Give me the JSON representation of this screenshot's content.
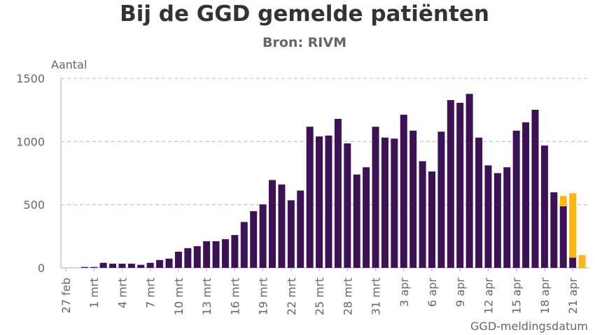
{
  "chart_data": {
    "type": "bar",
    "stacked": true,
    "title": "Bij de GGD gemelde patiënten",
    "subtitle": "Bron: RIVM",
    "ylabel": "Aantal",
    "xlabel": "GGD-meldingsdatum",
    "ylim": [
      0,
      1500
    ],
    "yticks": [
      0,
      500,
      1000,
      1500
    ],
    "grid": "horizontal dashed",
    "categories": [
      "27 feb",
      "28 feb",
      "29 feb",
      "1 mrt",
      "2 mrt",
      "3 mrt",
      "4 mrt",
      "5 mrt",
      "6 mrt",
      "7 mrt",
      "8 mrt",
      "9 mrt",
      "10 mrt",
      "11 mrt",
      "12 mrt",
      "13 mrt",
      "14 mrt",
      "15 mrt",
      "16 mrt",
      "17 mrt",
      "18 mrt",
      "19 mrt",
      "20 mrt",
      "21 mrt",
      "22 mrt",
      "23 mrt",
      "24 mrt",
      "25 mrt",
      "26 mrt",
      "27 mrt",
      "28 mrt",
      "29 mrt",
      "30 mrt",
      "31 mrt",
      "1 apr",
      "2 apr",
      "3 apr",
      "4 apr",
      "5 apr",
      "6 apr",
      "7 apr",
      "8 apr",
      "9 apr",
      "10 apr",
      "11 apr",
      "12 apr",
      "13 apr",
      "14 apr",
      "15 apr",
      "16 apr",
      "17 apr",
      "18 apr",
      "19 apr",
      "20 apr",
      "21 apr",
      "22 apr"
    ],
    "xtick_labels": [
      "27 feb",
      "1 mrt",
      "4 mrt",
      "7 mrt",
      "10 mrt",
      "13 mrt",
      "16 mrt",
      "19 mrt",
      "22 mrt",
      "25 mrt",
      "28 mrt",
      "31 mrt",
      "3 apr",
      "6 apr",
      "9 apr",
      "12 apr",
      "15 apr",
      "18 apr",
      "21 apr"
    ],
    "series": [
      {
        "color": "#3d1255",
        "values": [
          0,
          0,
          7,
          7,
          40,
          33,
          33,
          33,
          24,
          40,
          62,
          73,
          128,
          156,
          172,
          211,
          211,
          227,
          260,
          363,
          449,
          502,
          695,
          660,
          535,
          612,
          1117,
          1040,
          1047,
          1179,
          985,
          739,
          796,
          1117,
          1031,
          1023,
          1212,
          1086,
          844,
          763,
          1078,
          1328,
          1306,
          1377,
          1031,
          811,
          750,
          796,
          1086,
          1152,
          1251,
          968,
          598,
          488,
          81,
          0
        ]
      },
      {
        "color": "#ffb612",
        "values": [
          0,
          0,
          0,
          0,
          0,
          0,
          0,
          0,
          0,
          0,
          0,
          0,
          0,
          0,
          0,
          0,
          0,
          0,
          0,
          0,
          0,
          0,
          0,
          0,
          0,
          0,
          0,
          0,
          0,
          0,
          0,
          0,
          0,
          0,
          0,
          0,
          0,
          0,
          0,
          0,
          0,
          0,
          0,
          0,
          0,
          0,
          0,
          0,
          0,
          0,
          0,
          0,
          0,
          81,
          509,
          101
        ]
      }
    ]
  }
}
